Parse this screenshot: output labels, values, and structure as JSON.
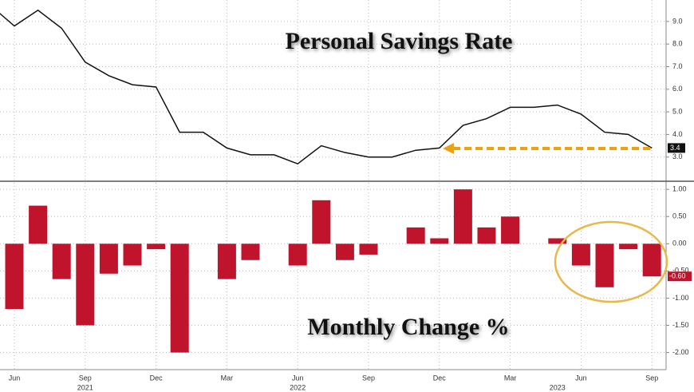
{
  "chart_data": [
    {
      "type": "line",
      "title": "Personal Savings Rate",
      "series": [
        {
          "name": "Personal Savings Rate",
          "color": "#111111",
          "values": [
            9.7,
            8.8,
            9.5,
            8.7,
            7.2,
            6.6,
            6.2,
            6.1,
            4.1,
            4.1,
            3.4,
            3.1,
            3.1,
            2.7,
            3.5,
            3.2,
            3.0,
            3.0,
            3.3,
            3.4,
            4.4,
            4.7,
            5.2,
            5.2,
            5.3,
            4.9,
            4.1,
            4.0,
            3.4
          ]
        }
      ],
      "ylim": [
        2.0,
        9.95
      ],
      "yticks": [
        {
          "value": 3,
          "label": "3.0"
        },
        {
          "value": 4,
          "label": "4.0"
        },
        {
          "value": 5,
          "label": "5.0"
        },
        {
          "value": 6,
          "label": "6.0"
        },
        {
          "value": 7,
          "label": "7.0"
        },
        {
          "value": 8,
          "label": "8.0"
        },
        {
          "value": 9,
          "label": "9.0"
        }
      ],
      "grid": true
    },
    {
      "type": "bar",
      "title": "Monthly Change %",
      "categories": [
        null,
        "Jun",
        null,
        null,
        "Sep",
        null,
        null,
        "Dec",
        null,
        null,
        "Mar",
        null,
        null,
        "Jun",
        null,
        null,
        "Sep",
        null,
        null,
        "Dec",
        null,
        null,
        "Mar",
        null,
        null,
        "Jun",
        null,
        null,
        "Sep"
      ],
      "year_labels": [
        {
          "label": "2021",
          "index": 4
        },
        {
          "label": "2022",
          "index": 13
        },
        {
          "label": "2023",
          "index": 24
        }
      ],
      "series": [
        {
          "name": "Monthly Change %",
          "color": "#c0142c",
          "values": [
            null,
            -1.2,
            0.7,
            -0.65,
            -1.5,
            -0.55,
            -0.4,
            -0.1,
            -2.0,
            0,
            -0.65,
            -0.3,
            0,
            -0.4,
            0.8,
            -0.3,
            -0.2,
            0,
            0.3,
            0.1,
            1.0,
            0.3,
            0.5,
            0,
            0.1,
            -0.4,
            -0.8,
            -0.1,
            -0.6
          ],
          "value_labels": [
            null,
            null,
            null,
            null,
            null,
            null,
            null,
            null,
            null,
            null,
            null,
            null,
            null,
            null,
            null,
            null,
            null,
            null,
            null,
            null,
            null,
            null,
            null,
            null,
            null,
            null,
            null,
            null,
            "-0.60"
          ]
        }
      ],
      "ylim": [
        -2.3,
        1.12
      ],
      "yticks": [
        {
          "value": -2,
          "label": "-2.00"
        },
        {
          "value": -1.5,
          "label": "-1.50"
        },
        {
          "value": -1,
          "label": "-1.00"
        },
        {
          "value": -0.5,
          "label": "-0.50"
        },
        {
          "value": 0,
          "label": "0.00"
        },
        {
          "value": 0.5,
          "label": "0.50"
        },
        {
          "value": 1,
          "label": "1.00"
        }
      ],
      "grid": true
    }
  ]
}
